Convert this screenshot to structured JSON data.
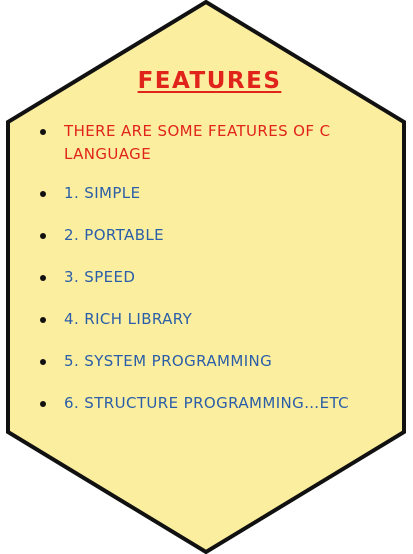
{
  "colors": {
    "hexagon_fill": "#fcee9f",
    "hexagon_border": "#111111",
    "title_color": "#e0241b",
    "intro_color": "#e0241b",
    "item_color": "#2a5ea8",
    "bullet_color": "#111111"
  },
  "title": "FEATURES",
  "items": [
    "THERE ARE SOME FEATURES OF C LANGUAGE",
    "1. SIMPLE",
    "2. PORTABLE",
    "3. SPEED",
    "4. RICH LIBRARY",
    "5. SYSTEM PROGRAMMING",
    "6. STRUCTURE PROGRAMMING…ETC"
  ]
}
